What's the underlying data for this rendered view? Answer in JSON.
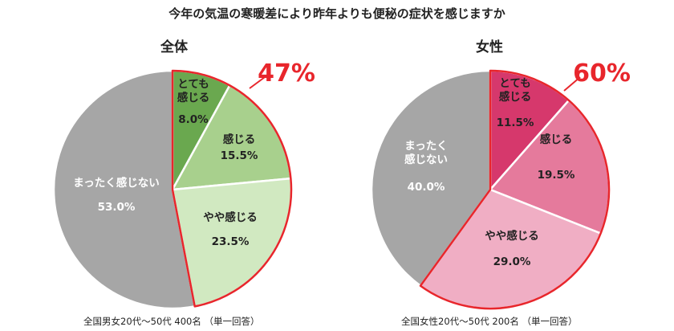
{
  "title": "今年の気温の寒暖差により昨年よりも便秘の症状を感じますか",
  "colors": {
    "highlight": "#e8262c",
    "all_darkgreen": "#6aa84f",
    "all_green": "#a8d08d",
    "all_lightgreen": "#d1e9c1",
    "female_dark": "#d6386c",
    "female_mid": "#e57a9c",
    "female_light": "#f0aec4",
    "gray": "#a6a6a6"
  },
  "chart_data": [
    {
      "type": "pie",
      "title": "全体",
      "highlight_label": "47%",
      "note": "全国男女20代～50代 400名 （単一回答）",
      "slices": [
        {
          "label": "とても\n感じる",
          "value": 8.0,
          "value_label": "8.0%",
          "color": "#6aa84f",
          "highlighted": true
        },
        {
          "label": "感じる",
          "value": 15.5,
          "value_label": "15.5%",
          "color": "#a8d08d",
          "highlighted": true
        },
        {
          "label": "やや感じる",
          "value": 23.5,
          "value_label": "23.5%",
          "color": "#d1e9c1",
          "highlighted": true
        },
        {
          "label": "まったく感じない",
          "value": 53.0,
          "value_label": "53.0%",
          "color": "#a6a6a6",
          "highlighted": false
        }
      ]
    },
    {
      "type": "pie",
      "title": "女性",
      "highlight_label": "60%",
      "note": "全国女性20代～50代 200名 （単一回答）",
      "slices": [
        {
          "label": "とても\n感じる",
          "value": 11.5,
          "value_label": "11.5%",
          "color": "#d6386c",
          "highlighted": true
        },
        {
          "label": "感じる",
          "value": 19.5,
          "value_label": "19.5%",
          "color": "#e57a9c",
          "highlighted": true
        },
        {
          "label": "やや感じる",
          "value": 29.0,
          "value_label": "29.0%",
          "color": "#f0aec4",
          "highlighted": true
        },
        {
          "label": "まったく\n感じない",
          "value": 40.0,
          "value_label": "40.0%",
          "color": "#a6a6a6",
          "highlighted": false
        }
      ]
    }
  ]
}
